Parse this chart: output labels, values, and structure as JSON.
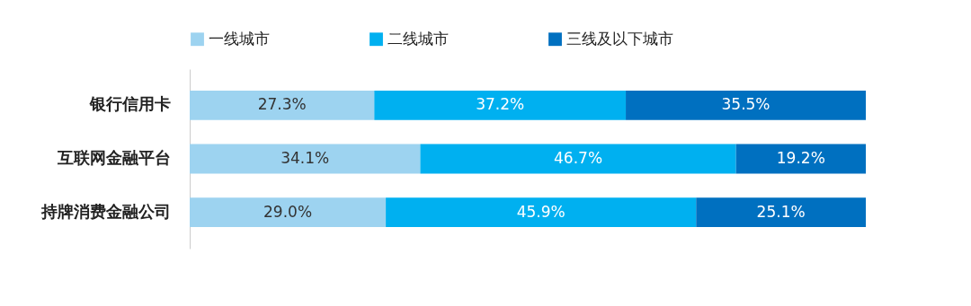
{
  "chart_data": {
    "type": "bar",
    "orientation": "horizontal",
    "stacked": true,
    "legend": "top",
    "categories": [
      "银行信用卡",
      "互联网金融平台",
      "持牌消费金融公司"
    ],
    "series": [
      {
        "name": "一线城市",
        "color": "#9dd3f0",
        "values": [
          27.3,
          34.1,
          29.0
        ],
        "value_labels": [
          "27.3%",
          "34.1%",
          "29.0%"
        ]
      },
      {
        "name": "二线城市",
        "color": "#00b0f0",
        "values": [
          37.2,
          46.7,
          45.9
        ],
        "value_labels": [
          "37.2%",
          "46.7%",
          "45.9%"
        ]
      },
      {
        "name": "三线及以下城市",
        "color": "#0070c0",
        "values": [
          35.5,
          19.2,
          25.1
        ],
        "value_labels": [
          "35.5%",
          "19.2%",
          "25.1%"
        ]
      }
    ]
  }
}
